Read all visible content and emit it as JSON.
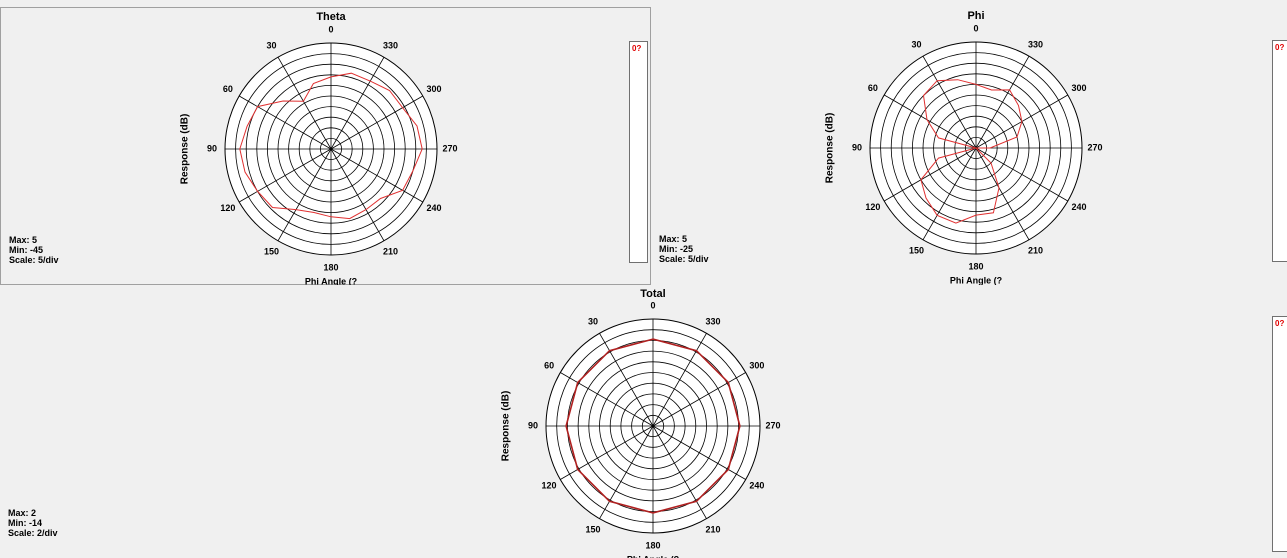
{
  "colors": {
    "trace": "#e03030",
    "trace_total": "#b02020",
    "grid": "#000000",
    "legend_text": "#e00000"
  },
  "chart_data": [
    {
      "type": "polar",
      "title": "Theta",
      "xlabel": "Phi Angle  (?",
      "ylabel": "Response  (dB)",
      "angle_labels": [
        "0",
        "30",
        "60",
        "90",
        "120",
        "150",
        "180",
        "210",
        "240",
        "270",
        "300",
        "330"
      ],
      "angle_direction": "counter-clockwise, 0 at top",
      "rlim": [
        -45,
        5
      ],
      "stats": {
        "max": "Max: 5",
        "min": "Min: -45",
        "scale": "Scale: 5/div"
      },
      "legend_label": "0?",
      "series": [
        {
          "angles": [
            0,
            15,
            30,
            45,
            60,
            75,
            90,
            105,
            120,
            135,
            150,
            165,
            180,
            195,
            210,
            225,
            240,
            255,
            270,
            285,
            300,
            315,
            330,
            345
          ],
          "values": [
            -11,
            -13,
            -19,
            -13,
            -5,
            -4,
            -2,
            -3,
            -5,
            -6,
            -12,
            -14,
            -13,
            -11,
            -12,
            -12,
            -6,
            -5,
            -2,
            -3,
            -6,
            -6,
            -8,
            -8
          ]
        }
      ]
    },
    {
      "type": "polar",
      "title": "Phi",
      "xlabel": "Phi Angle  (?",
      "ylabel": "Response  (dB)",
      "angle_labels": [
        "0",
        "30",
        "60",
        "90",
        "120",
        "150",
        "180",
        "210",
        "240",
        "270",
        "300",
        "330"
      ],
      "angle_direction": "counter-clockwise, 0 at top",
      "rlim": [
        -25,
        5
      ],
      "stats": {
        "max": "Max: 5",
        "min": "Min: -25",
        "scale": "Scale: 5/div"
      },
      "legend_label": "0?",
      "series": [
        {
          "angles": [
            0,
            15,
            30,
            45,
            60,
            75,
            90,
            105,
            120,
            135,
            150,
            165,
            180,
            195,
            210,
            225,
            240,
            255,
            270,
            285,
            300,
            315,
            330,
            345
          ],
          "values": [
            -7,
            -5,
            -3,
            -4,
            -9,
            -14,
            -25,
            -14,
            -7,
            -5,
            -3,
            -3,
            -6,
            -6,
            -12,
            -19,
            -25,
            -25,
            -21,
            -13,
            -10,
            -8,
            -6,
            -8
          ]
        }
      ]
    },
    {
      "type": "polar",
      "title": "Total",
      "xlabel": "Phi Angle  (?",
      "ylabel": "Response  (dB)",
      "angle_labels": [
        "0",
        "30",
        "60",
        "90",
        "120",
        "150",
        "180",
        "210",
        "240",
        "270",
        "300",
        "330"
      ],
      "angle_direction": "counter-clockwise, 0 at top",
      "rlim": [
        -14,
        2
      ],
      "stats": {
        "max": "Max: 2",
        "min": "Min: -14",
        "scale": "Scale: 2/div"
      },
      "legend_label": "0?",
      "series": [
        {
          "angles": [
            0,
            30,
            60,
            90,
            120,
            150,
            180,
            210,
            240,
            270,
            300,
            330
          ],
          "values": [
            -1,
            -1,
            -1,
            -1,
            -1,
            -1,
            -1,
            -1,
            -1,
            -1,
            -1,
            -1
          ]
        }
      ]
    }
  ]
}
